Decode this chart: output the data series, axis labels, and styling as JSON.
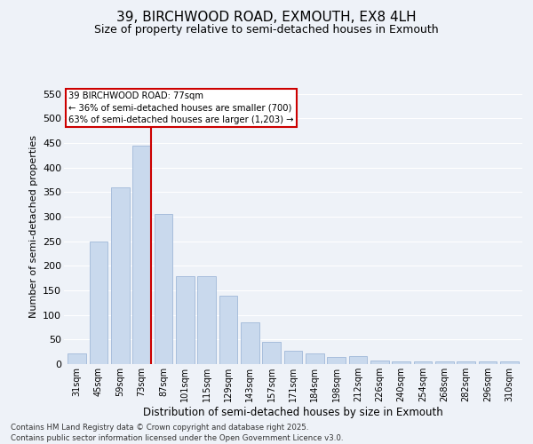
{
  "title1": "39, BIRCHWOOD ROAD, EXMOUTH, EX8 4LH",
  "title2": "Size of property relative to semi-detached houses in Exmouth",
  "xlabel": "Distribution of semi-detached houses by size in Exmouth",
  "ylabel": "Number of semi-detached properties",
  "categories": [
    "31sqm",
    "45sqm",
    "59sqm",
    "73sqm",
    "87sqm",
    "101sqm",
    "115sqm",
    "129sqm",
    "143sqm",
    "157sqm",
    "171sqm",
    "184sqm",
    "198sqm",
    "212sqm",
    "226sqm",
    "240sqm",
    "254sqm",
    "268sqm",
    "282sqm",
    "296sqm",
    "310sqm"
  ],
  "values": [
    22,
    250,
    360,
    445,
    305,
    178,
    178,
    140,
    85,
    46,
    27,
    22,
    15,
    17,
    8,
    6,
    6,
    6,
    5,
    5,
    5
  ],
  "bar_color": "#c9d9ed",
  "bar_edge_color": "#a0b8d8",
  "highlight_index": 3,
  "highlight_line_color": "#cc0000",
  "box_text_line1": "39 BIRCHWOOD ROAD: 77sqm",
  "box_text_line2": "← 36% of semi-detached houses are smaller (700)",
  "box_text_line3": "63% of semi-detached houses are larger (1,203) →",
  "box_color": "#cc0000",
  "ylim": [
    0,
    560
  ],
  "yticks": [
    0,
    50,
    100,
    150,
    200,
    250,
    300,
    350,
    400,
    450,
    500,
    550
  ],
  "footer_line1": "Contains HM Land Registry data © Crown copyright and database right 2025.",
  "footer_line2": "Contains public sector information licensed under the Open Government Licence v3.0.",
  "bg_color": "#eef2f8",
  "grid_color": "#ffffff",
  "title_fontsize": 11,
  "subtitle_fontsize": 9
}
